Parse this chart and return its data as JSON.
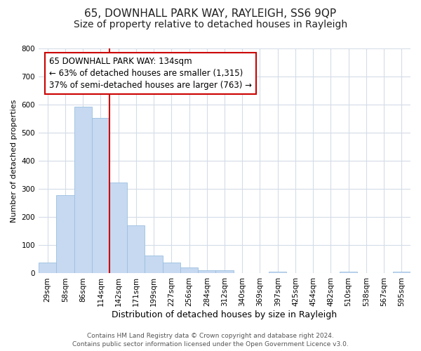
{
  "title": "65, DOWNHALL PARK WAY, RAYLEIGH, SS6 9QP",
  "subtitle": "Size of property relative to detached houses in Rayleigh",
  "xlabel": "Distribution of detached houses by size in Rayleigh",
  "ylabel": "Number of detached properties",
  "bar_labels": [
    "29sqm",
    "58sqm",
    "86sqm",
    "114sqm",
    "142sqm",
    "171sqm",
    "199sqm",
    "227sqm",
    "256sqm",
    "284sqm",
    "312sqm",
    "340sqm",
    "369sqm",
    "397sqm",
    "425sqm",
    "454sqm",
    "482sqm",
    "510sqm",
    "538sqm",
    "567sqm",
    "595sqm"
  ],
  "bar_values": [
    38,
    278,
    592,
    554,
    322,
    170,
    63,
    38,
    20,
    10,
    10,
    0,
    0,
    5,
    0,
    0,
    0,
    5,
    0,
    0,
    5
  ],
  "bar_color": "#c6d9f1",
  "bar_edge_color": "#9bbfe0",
  "vline_color": "#cc0000",
  "vline_x_index": 3.5,
  "annotation_line1": "65 DOWNHALL PARK WAY: 134sqm",
  "annotation_line2": "← 63% of detached houses are smaller (1,315)",
  "annotation_line3": "37% of semi-detached houses are larger (763) →",
  "annotation_box_color": "#ffffff",
  "annotation_box_edge_color": "#cc0000",
  "ylim": [
    0,
    800
  ],
  "yticks": [
    0,
    100,
    200,
    300,
    400,
    500,
    600,
    700,
    800
  ],
  "footer_line1": "Contains HM Land Registry data © Crown copyright and database right 2024.",
  "footer_line2": "Contains public sector information licensed under the Open Government Licence v3.0.",
  "bg_color": "#ffffff",
  "grid_color": "#d4dce8",
  "title_fontsize": 11,
  "subtitle_fontsize": 10,
  "xlabel_fontsize": 9,
  "ylabel_fontsize": 8,
  "tick_fontsize": 7.5,
  "annotation_fontsize": 8.5,
  "footer_fontsize": 6.5
}
